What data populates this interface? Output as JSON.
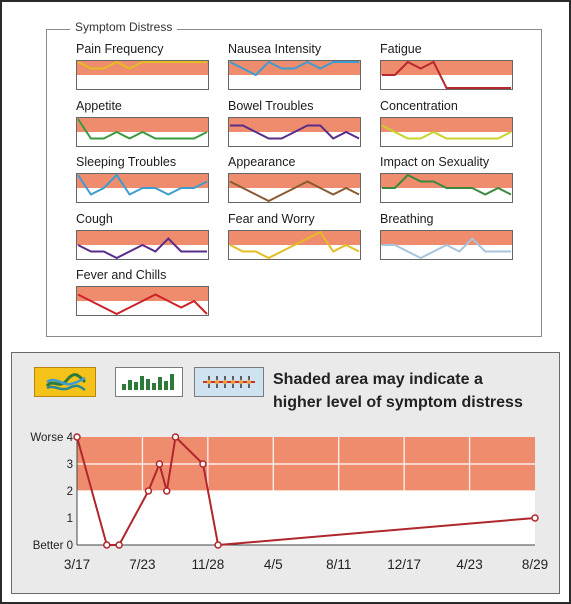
{
  "symptom_distress": {
    "legend": "Symptom Distress",
    "items": [
      {
        "label": "Pain Frequency",
        "color": "#e3bd22",
        "values": [
          4,
          3,
          3,
          4,
          3,
          4,
          4,
          4,
          4,
          4,
          4
        ]
      },
      {
        "label": "Nausea Intensity",
        "color": "#3f9cd0",
        "values": [
          4,
          3,
          2,
          4,
          3,
          3,
          4,
          3,
          4,
          4,
          4
        ]
      },
      {
        "label": "Fatigue",
        "color": "#b62a2f",
        "values": [
          2,
          2,
          4,
          3,
          4,
          0,
          0,
          0,
          0,
          0,
          0
        ]
      },
      {
        "label": "Appetite",
        "color": "#3a9a3e",
        "values": [
          4,
          1,
          1,
          2,
          1,
          2,
          1,
          1,
          1,
          1,
          2
        ]
      },
      {
        "label": "Bowel Troubles",
        "color": "#5a2d8a",
        "values": [
          3,
          3,
          2,
          1,
          1,
          2,
          3,
          3,
          1,
          2,
          1
        ]
      },
      {
        "label": "Concentration",
        "color": "#c8d22a",
        "values": [
          3,
          2,
          1,
          1,
          2,
          1,
          1,
          1,
          1,
          1,
          2
        ]
      },
      {
        "label": "Sleeping Troubles",
        "color": "#3f9cd0",
        "values": [
          4,
          1,
          2,
          4,
          1,
          2,
          2,
          1,
          2,
          2,
          3
        ]
      },
      {
        "label": "Appearance",
        "color": "#8a5a32",
        "values": [
          3,
          2,
          1,
          0,
          1,
          2,
          3,
          2,
          1,
          2,
          1
        ]
      },
      {
        "label": "Impact on Sexuality",
        "color": "#3a8a3e",
        "values": [
          2,
          2,
          4,
          3,
          3,
          2,
          2,
          2,
          1,
          2,
          1
        ]
      },
      {
        "label": "Cough",
        "color": "#5a2d8a",
        "values": [
          2,
          1,
          1,
          0,
          1,
          2,
          1,
          3,
          1,
          1,
          1
        ]
      },
      {
        "label": "Fear and Worry",
        "color": "#e3bd22",
        "values": [
          2,
          1,
          1,
          0,
          1,
          2,
          3,
          4,
          1,
          2,
          1
        ]
      },
      {
        "label": "Breathing",
        "color": "#a8c4dc",
        "values": [
          2,
          2,
          1,
          0,
          1,
          2,
          1,
          3,
          1,
          1,
          1
        ]
      },
      {
        "label": "Fever and Chills",
        "color": "#cc2228",
        "values": [
          3,
          2,
          1,
          0,
          1,
          2,
          3,
          2,
          1,
          2,
          0
        ]
      }
    ]
  },
  "controls": {
    "note_line1": "Shaded area may indicate a",
    "note_line2": "higher level of symptom distress",
    "buttons": [
      {
        "icon": "line-graph-icon",
        "active": true
      },
      {
        "icon": "bar-graph-icon",
        "active": false
      },
      {
        "icon": "dot-plot-icon",
        "active": false
      }
    ]
  },
  "chart_data": {
    "type": "line",
    "series": [
      {
        "values": [
          4,
          0,
          0,
          2,
          3,
          2,
          4,
          3,
          0,
          1
        ]
      }
    ],
    "x_points": [
      "3/17",
      "~5/10",
      "~6/01",
      "~8/18",
      "~8/27",
      "~9/05",
      "~9/14",
      "~10/20",
      "11/28",
      "8/29"
    ],
    "x_ticks": [
      "3/17",
      "7/23",
      "11/28",
      "4/5",
      "8/11",
      "12/17",
      "4/23",
      "8/29"
    ],
    "y_ticks": [
      "Worse 4",
      "3",
      "2",
      "1",
      "Better 0"
    ],
    "ylim": [
      0,
      4
    ],
    "shaded_range": [
      2,
      4
    ],
    "line_color": "#b0262c",
    "shade_color": "#f08c6e"
  }
}
